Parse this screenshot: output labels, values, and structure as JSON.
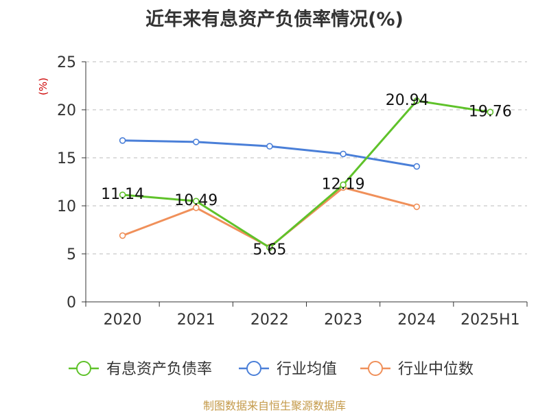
{
  "title": "近年来有息资产负债率情况(%)",
  "footer": "制图数据来自恒生聚源数据库",
  "colors": {
    "series_green": "#5fc22a",
    "series_blue": "#4a7fd8",
    "series_orange": "#f0905a",
    "axis": "#333333",
    "grid": "#bbbbbb",
    "unit": "#cc0000",
    "footer": "#c49a4a"
  },
  "chart_data": {
    "type": "line",
    "title": "近年来有息资产负债率情况(%)",
    "ylabel": "(%)",
    "categories": [
      "2020",
      "2021",
      "2022",
      "2023",
      "2024",
      "2025H1"
    ],
    "ylim": [
      0,
      25
    ],
    "yticks": [
      0,
      5,
      10,
      15,
      20,
      25
    ],
    "grid": true,
    "legend_position": "bottom",
    "series": [
      {
        "name": "有息资产负债率",
        "color": "#5fc22a",
        "values": [
          11.14,
          10.49,
          5.65,
          12.19,
          20.94,
          19.76
        ],
        "labels": [
          "11.14",
          "10.49",
          "5.65",
          "12.19",
          "20.94",
          "19.76"
        ]
      },
      {
        "name": "行业均值",
        "color": "#4a7fd8",
        "values": [
          16.8,
          16.65,
          16.2,
          15.4,
          14.1,
          null
        ]
      },
      {
        "name": "行业中位数",
        "color": "#f0905a",
        "values": [
          6.9,
          9.8,
          5.7,
          11.9,
          9.9,
          null
        ]
      }
    ]
  }
}
